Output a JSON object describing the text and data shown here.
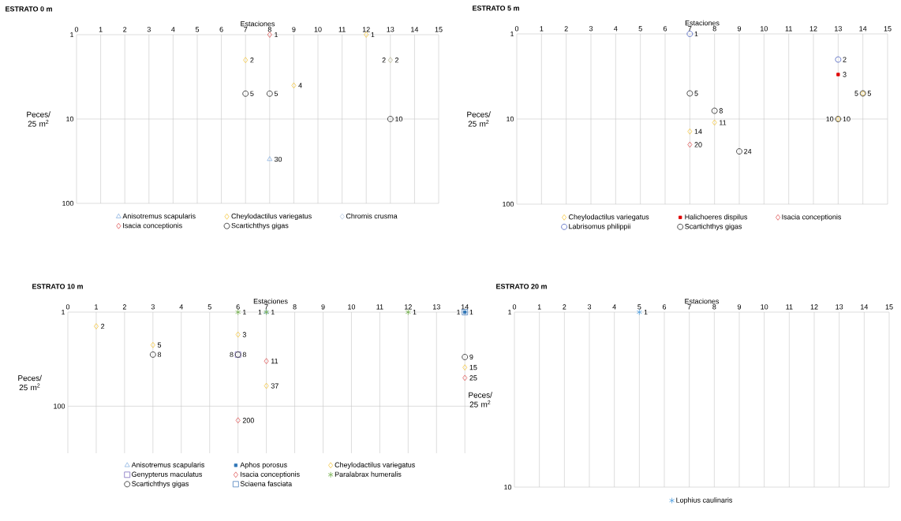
{
  "chart_data": [
    {
      "type": "scatter",
      "title": "ESTRATO 0 m",
      "xlabel": "Estaciones",
      "ylabel": "Peces/ 25 m$^{2}$",
      "xlim": [
        0,
        15
      ],
      "xticks": [
        0,
        1,
        2,
        3,
        4,
        5,
        6,
        7,
        8,
        9,
        10,
        11,
        12,
        13,
        14,
        15
      ],
      "ylim": [
        100,
        1
      ],
      "yticks": [
        1,
        10,
        100
      ],
      "log": true,
      "grid": true,
      "legend": "bottom",
      "data_labels": true,
      "series": [
        {
          "name": "Anisotremus scapularis",
          "color": "#8db4e2",
          "marker": "triangle",
          "x": [
            8
          ],
          "values": [
            30
          ]
        },
        {
          "name": "Cheylodactilus variegatus",
          "color": "#f5c842",
          "marker": "diamond",
          "x": [
            7,
            9,
            12,
            13
          ],
          "values": [
            2,
            4,
            1,
            2
          ]
        },
        {
          "name": "Chromis crusma",
          "color": "#b8cce4",
          "marker": "diamond",
          "x": [
            13
          ],
          "values": [
            2
          ]
        },
        {
          "name": "Isacia conceptionis",
          "color": "#e05a5a",
          "marker": "diamond",
          "x": [
            8
          ],
          "values": [
            1
          ]
        },
        {
          "name": "Scartichthys gigas",
          "color": "#222222",
          "marker": "circle",
          "x": [
            7,
            8,
            13
          ],
          "values": [
            5,
            5,
            10
          ]
        }
      ]
    },
    {
      "type": "scatter",
      "title": "ESTRATO 5 m",
      "xlabel": "Estaciones",
      "ylabel": "Peces/ 25 m$^{2}$",
      "xlim": [
        0,
        15
      ],
      "xticks": [
        0,
        1,
        2,
        3,
        4,
        5,
        6,
        7,
        8,
        9,
        10,
        11,
        12,
        13,
        14,
        15
      ],
      "ylim": [
        100,
        1
      ],
      "yticks": [
        1,
        10,
        100
      ],
      "log": true,
      "grid": true,
      "legend": "bottom",
      "data_labels": true,
      "series": [
        {
          "name": "Cheylodactilus variegatus",
          "color": "#f5c842",
          "marker": "diamond",
          "x": [
            7,
            8,
            13,
            14
          ],
          "values": [
            14,
            11,
            10,
            5
          ]
        },
        {
          "name": "Halichoeres dispilus",
          "color": "#e00000",
          "x": [
            13
          ],
          "values": [
            3
          ]
        },
        {
          "name": "Isacia conceptionis",
          "color": "#e05a5a",
          "marker": "diamond",
          "x": [
            7
          ],
          "values": [
            20
          ]
        },
        {
          "name": "Labrisomus philippii",
          "color": "#4a5fbf",
          "marker": "circle",
          "x": [
            7,
            13
          ],
          "values": [
            1,
            2
          ]
        },
        {
          "name": "Scartichthys gigas",
          "color": "#222222",
          "marker": "circle",
          "x": [
            7,
            8,
            9,
            13,
            14
          ],
          "values": [
            5,
            8,
            24,
            10,
            5
          ]
        }
      ]
    },
    {
      "type": "scatter",
      "title": "ESTRATO 10 m",
      "xlabel": "Estaciones",
      "ylabel": "Peces/ 25 m$^{2}$",
      "xlim": [
        0,
        14.3
      ],
      "xticks": [
        0,
        1,
        2,
        3,
        4,
        5,
        6,
        7,
        8,
        9,
        10,
        11,
        12,
        13,
        14
      ],
      "ylim": [
        1000,
        1
      ],
      "yticks": [
        1,
        100
      ],
      "log": true,
      "grid": true,
      "legend": "bottom",
      "data_labels": true,
      "series": [
        {
          "name": "Anisotremus scapularis",
          "color": "#8db4e2",
          "marker": "triangle",
          "x": [
            7
          ],
          "values": [
            1
          ]
        },
        {
          "name": "Aphos porosus",
          "color": "#2e75b6",
          "x": [
            14
          ],
          "values": [
            1
          ]
        },
        {
          "name": "Cheylodactilus variegatus",
          "color": "#f5c842",
          "marker": "diamond",
          "x": [
            1,
            3,
            6,
            7,
            14
          ],
          "values": [
            2,
            5,
            3,
            37,
            15
          ]
        },
        {
          "name": "Genypterus maculatus",
          "color": "#7f6fbf",
          "marker": "square",
          "x": [
            6
          ],
          "values": [
            8
          ]
        },
        {
          "name": "Isacia conceptionis",
          "color": "#e05a5a",
          "marker": "diamond",
          "x": [
            7,
            6,
            14
          ],
          "values": [
            11,
            200,
            25
          ]
        },
        {
          "name": "Paralabrax humeralis",
          "color": "#70ad47",
          "marker": "cross",
          "x": [
            6,
            7,
            12
          ],
          "values": [
            1,
            1,
            1
          ]
        },
        {
          "name": "Scartichthys gigas",
          "color": "#222222",
          "marker": "circle",
          "x": [
            3,
            6,
            14
          ],
          "values": [
            8,
            8,
            9
          ]
        },
        {
          "name": "Sciaena fasciata",
          "color": "#4f81bd",
          "marker": "square",
          "x": [
            14
          ],
          "values": [
            1
          ]
        }
      ]
    },
    {
      "type": "scatter",
      "title": "ESTRATO 20 m",
      "xlabel": "Estaciones",
      "ylabel": "Peces/ 25 m$^{2}$",
      "xlim": [
        0,
        15
      ],
      "xticks": [
        0,
        1,
        2,
        3,
        4,
        5,
        6,
        7,
        8,
        9,
        10,
        11,
        12,
        13,
        14,
        15
      ],
      "ylim": [
        10,
        1
      ],
      "yticks": [
        1,
        10
      ],
      "log": true,
      "grid": true,
      "legend": "bottom",
      "data_labels": true,
      "series": [
        {
          "name": "Lophius caulinaris",
          "color": "#4f9fdf",
          "marker": "cross",
          "x": [
            5
          ],
          "values": [
            1
          ]
        }
      ]
    }
  ]
}
